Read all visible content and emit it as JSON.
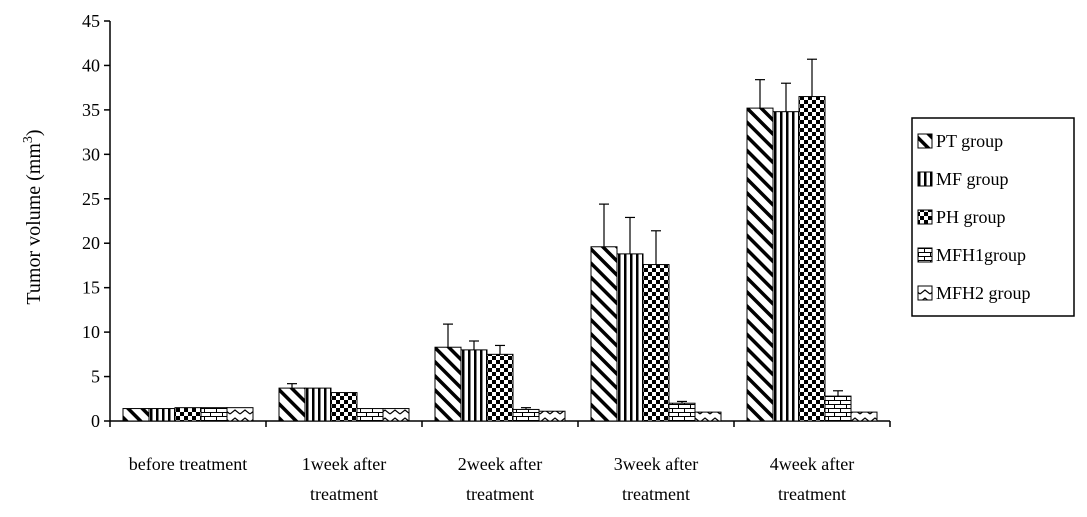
{
  "chart_data": {
    "type": "bar",
    "title": "",
    "xlabel": "",
    "ylabel": "Tumor volume (mm",
    "ylabel_superscript": "3",
    "ylabel_suffix": ")",
    "ylim": [
      0,
      45
    ],
    "yticks": [
      0,
      5,
      10,
      15,
      20,
      25,
      30,
      35,
      40,
      45
    ],
    "grid": false,
    "legend_position": "right",
    "categories": [
      [
        "before treatment"
      ],
      [
        "1week after",
        "treatment"
      ],
      [
        "2week after",
        "treatment"
      ],
      [
        "3week after",
        "treatment"
      ],
      [
        "4week after",
        "treatment"
      ]
    ],
    "series": [
      {
        "name": "PT group",
        "pattern": "diagonal",
        "values": [
          1.4,
          3.7,
          8.3,
          19.6,
          35.2
        ],
        "errors": [
          0.1,
          0.5,
          2.6,
          4.8,
          3.2
        ]
      },
      {
        "name": "MF group",
        "pattern": "vertical",
        "values": [
          1.4,
          3.7,
          8.0,
          18.8,
          34.8
        ],
        "errors": [
          0.1,
          0.1,
          1.0,
          4.1,
          3.2
        ]
      },
      {
        "name": "PH group",
        "pattern": "checker",
        "values": [
          1.5,
          3.2,
          7.5,
          17.6,
          36.5
        ],
        "errors": [
          0.1,
          0.1,
          1.0,
          3.8,
          4.2
        ]
      },
      {
        "name": "MFH1group",
        "pattern": "brick",
        "values": [
          1.5,
          1.4,
          1.3,
          2.0,
          2.8
        ],
        "errors": [
          0.1,
          0.1,
          0.2,
          0.2,
          0.6
        ]
      },
      {
        "name": "MFH2 group",
        "pattern": "zigzag",
        "values": [
          1.5,
          1.4,
          1.1,
          1.0,
          1.0
        ],
        "errors": [
          0.1,
          0.1,
          0.1,
          0.1,
          0.1
        ]
      }
    ]
  }
}
